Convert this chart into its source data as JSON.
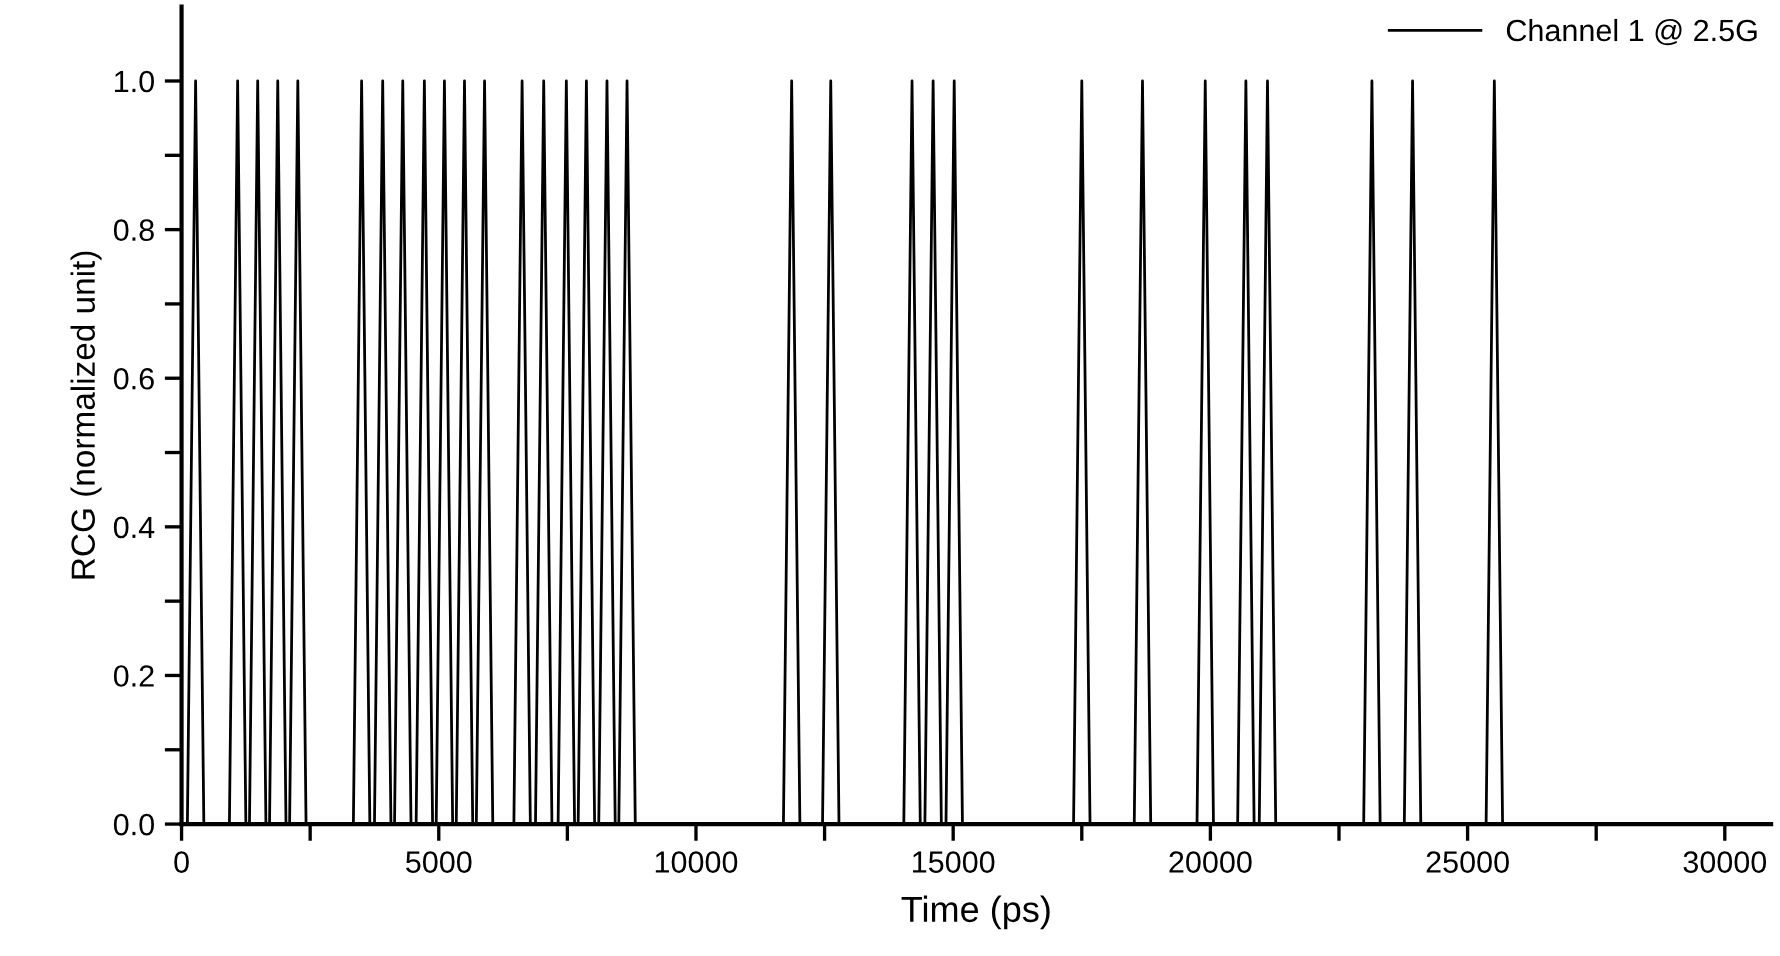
{
  "chart_data": {
    "type": "line",
    "xlabel": "Time (ps)",
    "ylabel": "RCG (normalized unit)",
    "xlim": [
      0,
      30900
    ],
    "ylim": [
      0,
      1.1
    ],
    "xticks": [
      0,
      {
        "value": 2500,
        "label": null
      },
      5000,
      {
        "value": 7500,
        "label": null
      },
      10000,
      {
        "value": 12500,
        "label": null
      },
      15000,
      {
        "value": 17500,
        "label": null
      },
      20000,
      {
        "value": 22500,
        "label": null
      },
      25000,
      {
        "value": 27500,
        "label": null
      },
      30000
    ],
    "yticks": [
      {
        "value": 0,
        "label": "0.0"
      },
      {
        "value": 0.1,
        "label": null
      },
      0.2,
      {
        "value": 0.3,
        "label": null
      },
      0.4,
      {
        "value": 0.5,
        "label": null
      },
      0.6,
      {
        "value": 0.7,
        "label": null
      },
      0.8,
      {
        "value": 0.9,
        "label": null
      },
      {
        "value": 1,
        "label": "1.0"
      }
    ],
    "legend": "top right",
    "grid": false,
    "marker": "none",
    "line_style": "solid",
    "series": [
      {
        "name": "Channel 1 @ 2.5G",
        "color": "#000000",
        "x": [
          0,
          113,
          273,
          433,
          930,
          1090,
          1250,
          1320,
          1480,
          1640,
          1710,
          1870,
          2030,
          2100,
          2260,
          2420,
          3340,
          3500,
          3660,
          3750,
          3910,
          4070,
          4140,
          4300,
          4460,
          4560,
          4720,
          4880,
          4950,
          5110,
          5270,
          5340,
          5500,
          5660,
          5730,
          5890,
          6050,
          6460,
          6620,
          6780,
          6880,
          7040,
          7200,
          7320,
          7480,
          7640,
          7710,
          7870,
          8030,
          8110,
          8270,
          8430,
          8500,
          8660,
          8820,
          11700,
          11860,
          12020,
          12460,
          12620,
          12780,
          14040,
          14200,
          14360,
          14450,
          14610,
          14770,
          14860,
          15020,
          15180,
          17340,
          17500,
          17660,
          18520,
          18680,
          18840,
          19740,
          19900,
          20060,
          20530,
          20690,
          20850,
          20950,
          21110,
          21270,
          22980,
          23140,
          23300,
          23770,
          23930,
          24090,
          25360,
          25520,
          25680,
          30900
        ],
        "values": [
          0,
          0,
          1,
          0,
          0,
          1,
          0,
          0,
          1,
          0,
          0,
          1,
          0,
          0,
          1,
          0,
          0,
          1,
          0,
          0,
          1,
          0,
          0,
          1,
          0,
          0,
          1,
          0,
          0,
          1,
          0,
          0,
          1,
          0,
          0,
          1,
          0,
          0,
          1,
          0,
          0,
          1,
          0,
          0,
          1,
          0,
          0,
          1,
          0,
          0,
          1,
          0,
          0,
          1,
          0,
          0,
          1,
          0,
          0,
          1,
          0,
          0,
          1,
          0,
          0,
          1,
          0,
          0,
          1,
          0,
          0,
          1,
          0,
          0,
          1,
          0,
          0,
          1,
          0,
          0,
          1,
          0,
          0,
          1,
          0,
          0,
          1,
          0,
          0,
          1,
          0,
          0,
          1,
          0,
          0
        ]
      }
    ]
  }
}
